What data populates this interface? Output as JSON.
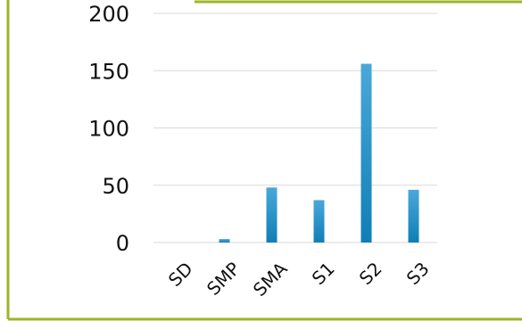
{
  "chart_data": {
    "type": "bar",
    "categories": [
      "SD",
      "SMP",
      "SMA",
      "S1",
      "S2",
      "S3"
    ],
    "values": [
      0,
      3,
      48,
      37,
      156,
      46
    ],
    "ylim": [
      0,
      200
    ],
    "yticks": [
      0,
      50,
      100,
      150,
      200
    ],
    "grid": true,
    "title": "",
    "xlabel": "",
    "ylabel": ""
  },
  "colors": {
    "frame": "#9bb52a",
    "bar_top": "#4aa8d8",
    "bar_bottom": "#0f7fb6",
    "grid": "#d9d9d9"
  }
}
